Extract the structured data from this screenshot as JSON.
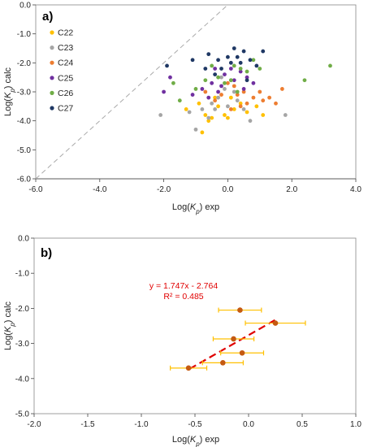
{
  "chart_data": [
    {
      "type": "scatter",
      "panel_label": "a)",
      "xlabel_pre": "Log(",
      "xlabel_var": "K",
      "xlabel_sub": "p",
      "xlabel_post": ") exp",
      "ylabel_pre": "Log(",
      "ylabel_var": "K",
      "ylabel_sub": "p",
      "ylabel_post": ") calc",
      "xlim": [
        -6.0,
        4.0
      ],
      "ylim": [
        -6.0,
        0.0
      ],
      "xticks": [
        "-6.0",
        "-4.0",
        "-2.0",
        "0.0",
        "2.0",
        "4.0"
      ],
      "yticks": [
        "0.0",
        "-1.0",
        "-2.0",
        "-3.0",
        "-4.0",
        "-5.0",
        "-6.0"
      ],
      "legend_position": "top-left",
      "reference_line": {
        "style": "dashed",
        "color": "#aaaaaa",
        "x": [
          -6.0,
          0.0
        ],
        "y": [
          -6.0,
          0.0
        ]
      },
      "series": [
        {
          "name": "C22",
          "color": "#ffc000",
          "points": [
            [
              -1.3,
              -3.6
            ],
            [
              -0.8,
              -4.4
            ],
            [
              -0.6,
              -4.0
            ],
            [
              -0.7,
              -3.8
            ],
            [
              -0.5,
              -3.9
            ],
            [
              -0.3,
              -3.5
            ],
            [
              -0.1,
              -3.8
            ],
            [
              0.1,
              -3.2
            ],
            [
              0.2,
              -3.6
            ],
            [
              0.4,
              -3.4
            ],
            [
              0.6,
              -3.7
            ],
            [
              0.9,
              -3.5
            ],
            [
              1.1,
              -3.8
            ],
            [
              -0.9,
              -3.4
            ],
            [
              0.0,
              -3.9
            ],
            [
              -0.4,
              -3.2
            ]
          ]
        },
        {
          "name": "C23",
          "color": "#a5a5a5",
          "points": [
            [
              -2.1,
              -3.8
            ],
            [
              -1.2,
              -3.7
            ],
            [
              -1.0,
              -4.3
            ],
            [
              -0.8,
              -3.6
            ],
            [
              -0.6,
              -3.9
            ],
            [
              -0.4,
              -3.6
            ],
            [
              -0.3,
              -3.2
            ],
            [
              -0.2,
              -2.5
            ],
            [
              -0.1,
              -2.9
            ],
            [
              0.0,
              -3.5
            ],
            [
              0.1,
              -2.6
            ],
            [
              0.2,
              -3.0
            ],
            [
              0.3,
              -3.3
            ],
            [
              0.5,
              -3.6
            ],
            [
              0.7,
              -4.0
            ],
            [
              1.8,
              -3.8
            ],
            [
              -0.5,
              -3.4
            ]
          ]
        },
        {
          "name": "C24",
          "color": "#ed7d31",
          "points": [
            [
              -0.7,
              -3.0
            ],
            [
              -0.4,
              -3.3
            ],
            [
              -0.2,
              -3.1
            ],
            [
              0.0,
              -2.7
            ],
            [
              0.2,
              -2.8
            ],
            [
              0.3,
              -3.1
            ],
            [
              0.4,
              -3.5
            ],
            [
              0.5,
              -3.0
            ],
            [
              0.6,
              -3.4
            ],
            [
              0.8,
              -3.2
            ],
            [
              1.0,
              -3.0
            ],
            [
              1.1,
              -3.3
            ],
            [
              1.3,
              -3.2
            ],
            [
              1.7,
              -2.9
            ],
            [
              1.5,
              -3.4
            ],
            [
              0.1,
              -3.6
            ]
          ]
        },
        {
          "name": "C25",
          "color": "#7030a0",
          "points": [
            [
              -2.0,
              -3.0
            ],
            [
              -1.8,
              -2.5
            ],
            [
              -1.1,
              -3.1
            ],
            [
              -0.8,
              -2.9
            ],
            [
              -0.6,
              -3.2
            ],
            [
              -0.5,
              -2.7
            ],
            [
              -0.4,
              -2.2
            ],
            [
              -0.2,
              -2.8
            ],
            [
              -0.1,
              -2.4
            ],
            [
              0.1,
              -2.2
            ],
            [
              0.2,
              -2.6
            ],
            [
              0.4,
              -2.3
            ],
            [
              0.5,
              -2.9
            ],
            [
              0.6,
              -2.5
            ],
            [
              0.8,
              -2.7
            ],
            [
              -0.3,
              -3.0
            ]
          ]
        },
        {
          "name": "C26",
          "color": "#70ad47",
          "points": [
            [
              -1.7,
              -2.7
            ],
            [
              -1.5,
              -3.3
            ],
            [
              -1.0,
              -2.9
            ],
            [
              -0.7,
              -2.6
            ],
            [
              -0.5,
              -2.1
            ],
            [
              -0.3,
              -2.5
            ],
            [
              -0.1,
              -2.7
            ],
            [
              0.1,
              -2.6
            ],
            [
              0.2,
              -2.1
            ],
            [
              0.4,
              -2.2
            ],
            [
              0.6,
              -2.3
            ],
            [
              0.8,
              -1.9
            ],
            [
              1.0,
              -2.2
            ],
            [
              2.4,
              -2.6
            ],
            [
              3.2,
              -2.1
            ],
            [
              0.3,
              -3.0
            ]
          ]
        },
        {
          "name": "C27",
          "color": "#1f3864",
          "points": [
            [
              -1.9,
              -2.1
            ],
            [
              -1.1,
              -1.9
            ],
            [
              -0.7,
              -2.2
            ],
            [
              -0.6,
              -1.7
            ],
            [
              -0.4,
              -2.4
            ],
            [
              -0.3,
              -1.9
            ],
            [
              -0.2,
              -2.2
            ],
            [
              0.0,
              -1.8
            ],
            [
              0.1,
              -2.0
            ],
            [
              0.2,
              -1.5
            ],
            [
              0.3,
              -1.8
            ],
            [
              0.4,
              -2.0
            ],
            [
              0.5,
              -1.6
            ],
            [
              0.7,
              -1.9
            ],
            [
              0.9,
              -2.1
            ],
            [
              1.1,
              -1.6
            ],
            [
              0.6,
              -2.6
            ]
          ]
        }
      ]
    },
    {
      "type": "scatter",
      "panel_label": "b)",
      "xlabel_pre": "Log(",
      "xlabel_var": "K",
      "xlabel_sub": "p",
      "xlabel_post": ")  exp",
      "ylabel_pre": "Log(",
      "ylabel_var": "K",
      "ylabel_sub": "p",
      "ylabel_post": ") calc",
      "xlim": [
        -2.0,
        1.0
      ],
      "ylim": [
        -5.0,
        0.0
      ],
      "xticks": [
        "-2.0",
        "-1.5",
        "-1.0",
        "-0.5",
        "0.0",
        "0.5",
        "1.0"
      ],
      "yticks": [
        "0.0",
        "-1.0",
        "-2.0",
        "-3.0",
        "-4.0",
        "-5.0"
      ],
      "equation": "y = 1.747x - 2.764",
      "r_squared": "R² = 0.485",
      "trendline": {
        "style": "dashed",
        "color": "#e00000",
        "slope": 1.747,
        "intercept": -2.764,
        "x_range": [
          -0.55,
          0.25
        ]
      },
      "marker_color": "#c55a11",
      "errorbar_color": "#ffc000",
      "points": [
        {
          "x": -0.56,
          "y": -3.7,
          "xerr": 0.17
        },
        {
          "x": -0.24,
          "y": -3.55,
          "xerr": 0.19
        },
        {
          "x": -0.06,
          "y": -3.27,
          "xerr": 0.2
        },
        {
          "x": -0.14,
          "y": -2.87,
          "xerr": 0.19
        },
        {
          "x": -0.08,
          "y": -2.05,
          "xerr": 0.2
        },
        {
          "x": 0.25,
          "y": -2.42,
          "xerr": 0.28
        }
      ]
    }
  ]
}
